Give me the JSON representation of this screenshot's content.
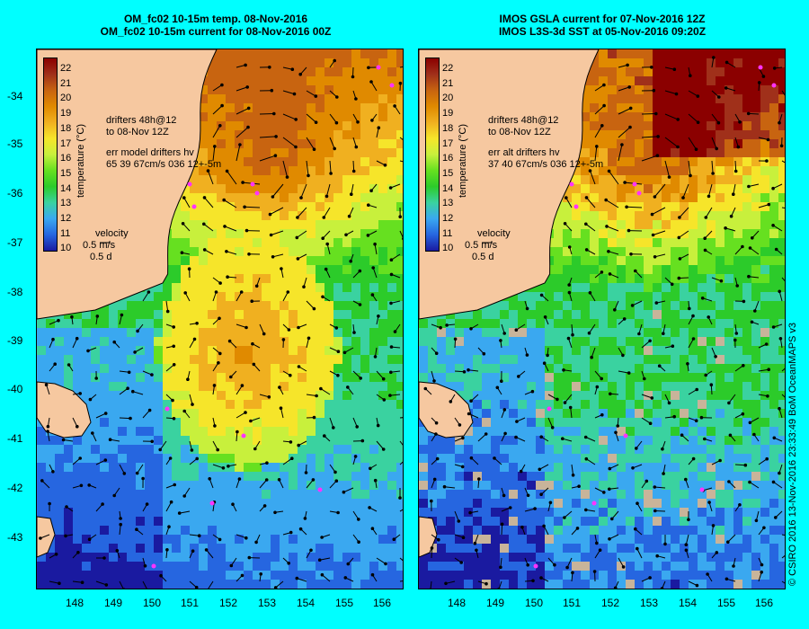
{
  "page": {
    "background": "#00ffff",
    "credit": "© CSIRO 2016   13-Nov-2016 23:33:49 BoM OceanMAPS v3"
  },
  "axes": {
    "lat_labels": [
      "-34",
      "-35",
      "-36",
      "-37",
      "-38",
      "-39",
      "-40",
      "-41",
      "-42",
      "-43"
    ],
    "lon_labels": [
      "148",
      "149",
      "150",
      "151",
      "152",
      "153",
      "154",
      "155",
      "156"
    ]
  },
  "colorbar": {
    "title": "temperature (°C)",
    "ticks": [
      "22",
      "21",
      "20",
      "19",
      "18",
      "17",
      "16",
      "15",
      "14",
      "13",
      "12",
      "11",
      "10"
    ],
    "colors": [
      "#8b0000",
      "#a0301a",
      "#c86410",
      "#e08a00",
      "#f0b020",
      "#f6e52a",
      "#c8f03c",
      "#66e020",
      "#2ccb2a",
      "#3ad2a0",
      "#3aa8f0",
      "#2666e0",
      "#1a1aa0"
    ]
  },
  "panels": [
    {
      "id": "left",
      "title_line1": "OM_fc02 10-15m temp. 08-Nov-2016",
      "title_line2": "OM_fc02 10-15m current for 08-Nov-2016 00Z",
      "legend_line1": "drifters 48h@12",
      "legend_line2": "to 08-Nov 12Z",
      "err_line1": "err model drifters hv",
      "err_line2": "65 39 67cm/s 036 12+-5m",
      "velocity_label": "velocity",
      "velocity_scale": "0.5 m/s",
      "velocity_time": "0.5 d"
    },
    {
      "id": "right",
      "title_line1": "IMOS GSLA current for 07-Nov-2016 12Z",
      "title_line2": "IMOS L3S-3d SST at 05-Nov-2016 09:20Z",
      "legend_line1": "drifters 48h@12",
      "legend_line2": "to 08-Nov 12Z",
      "err_line1": "err alt drifters hv",
      "err_line2": "37 40 67cm/s 036 12+-5m",
      "velocity_label": "velocity",
      "velocity_scale": "0.5 m/s",
      "velocity_time": "0.5 d"
    }
  ]
}
